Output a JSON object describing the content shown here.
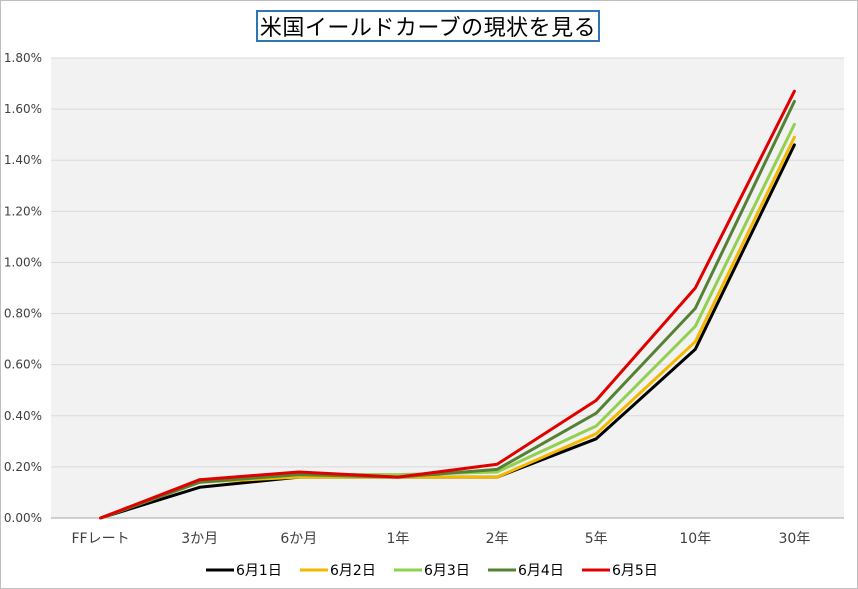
{
  "chart_data": {
    "type": "line",
    "title": "米国イールドカーブの現状を見る",
    "categories": [
      "FFレート",
      "3か月",
      "6か月",
      "1年",
      "2年",
      "5年",
      "10年",
      "30年"
    ],
    "ylim": [
      0,
      1.8
    ],
    "yticks": [
      "0.00%",
      "0.20%",
      "0.40%",
      "0.60%",
      "0.80%",
      "1.00%",
      "1.20%",
      "1.40%",
      "1.60%",
      "1.80%"
    ],
    "grid": true,
    "legend_position": "bottom",
    "series": [
      {
        "name": "6月1日",
        "color": "#000000",
        "values": [
          0.0,
          0.12,
          0.16,
          0.16,
          0.16,
          0.31,
          0.66,
          1.46
        ]
      },
      {
        "name": "6月2日",
        "color": "#f4b800",
        "values": [
          0.0,
          0.14,
          0.16,
          0.16,
          0.16,
          0.33,
          0.69,
          1.49
        ]
      },
      {
        "name": "6月3日",
        "color": "#92d050",
        "values": [
          0.0,
          0.14,
          0.17,
          0.17,
          0.18,
          0.36,
          0.75,
          1.54
        ]
      },
      {
        "name": "6月4日",
        "color": "#548235",
        "values": [
          0.0,
          0.14,
          0.17,
          0.16,
          0.19,
          0.41,
          0.82,
          1.63
        ]
      },
      {
        "name": "6月5日",
        "color": "#e00000",
        "values": [
          0.0,
          0.15,
          0.18,
          0.16,
          0.21,
          0.46,
          0.9,
          1.67
        ]
      }
    ]
  }
}
